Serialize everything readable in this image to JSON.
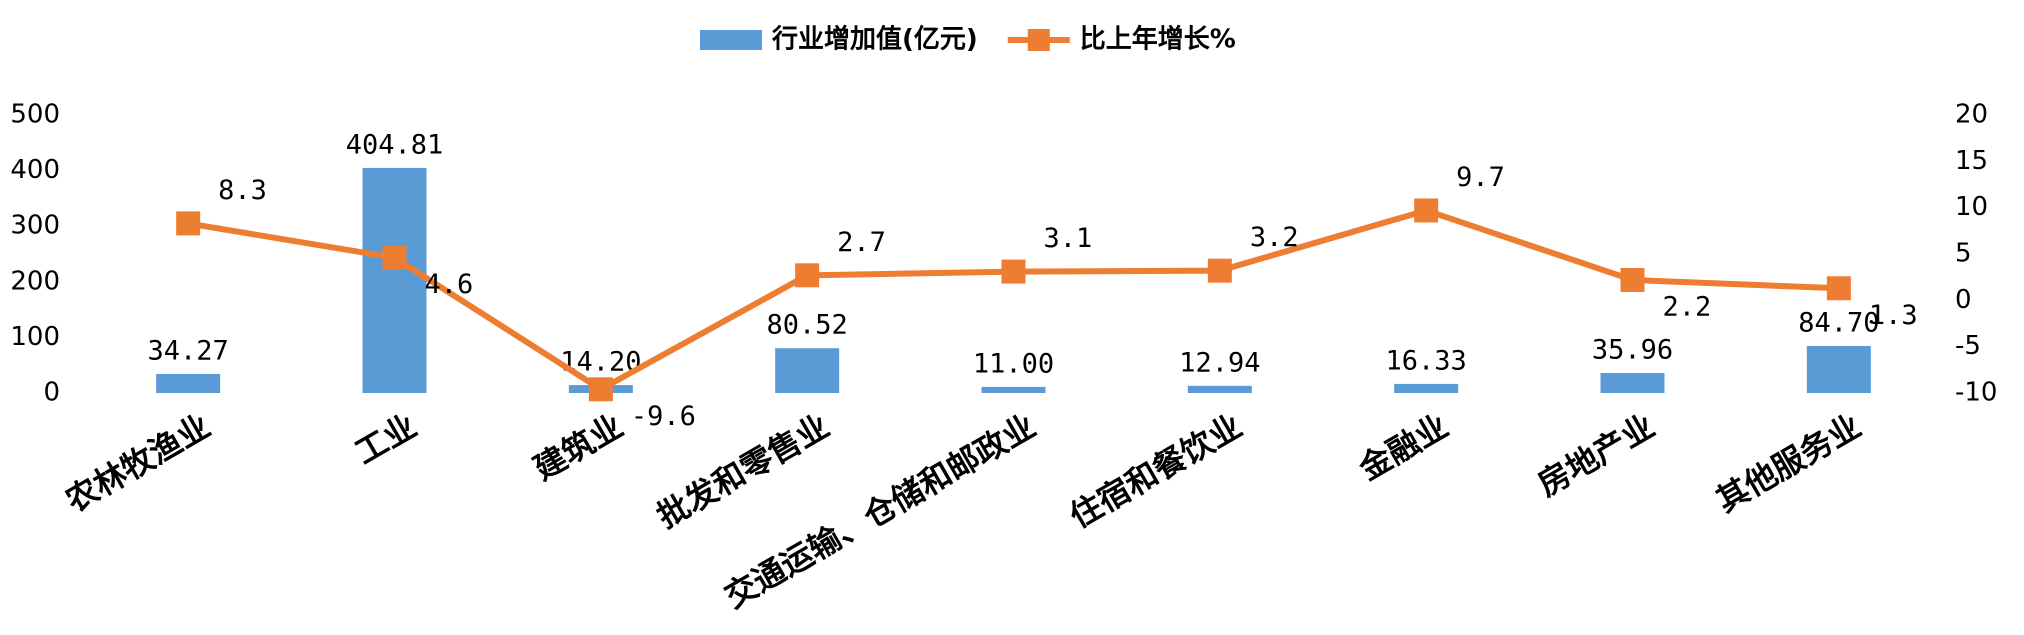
{
  "chart_data": {
    "type": "bar",
    "categories": [
      "农林牧渔业",
      "工业",
      "建筑业",
      "批发和零售业",
      "交通运输、仓储和邮政业",
      "住宿和餐饮业",
      "金融业",
      "房地产业",
      "其他服务业"
    ],
    "series": [
      {
        "name": "行业增加值(亿元)",
        "type": "bar",
        "color": "#5b9bd5",
        "values": [
          34.27,
          404.81,
          14.2,
          80.52,
          11.0,
          12.94,
          16.33,
          35.96,
          84.7
        ],
        "value_labels": [
          "34.27",
          "404.81",
          "14.20",
          "80.52",
          "11.00",
          "12.94",
          "16.33",
          "35.96",
          "84.70"
        ]
      },
      {
        "name": "比上年增长%",
        "type": "line",
        "color": "#ed7d31",
        "axis": "y2",
        "values": [
          8.3,
          4.6,
          -9.6,
          2.7,
          3.1,
          3.2,
          9.7,
          2.2,
          1.3
        ]
      }
    ],
    "ylim": [
      0,
      500
    ],
    "yticks": [
      0,
      100,
      200,
      300,
      400,
      500
    ],
    "y2lim": [
      -10,
      20
    ],
    "y2ticks": [
      -10,
      -5,
      0,
      5,
      10,
      15,
      20
    ],
    "legend": "top",
    "grid": false
  }
}
